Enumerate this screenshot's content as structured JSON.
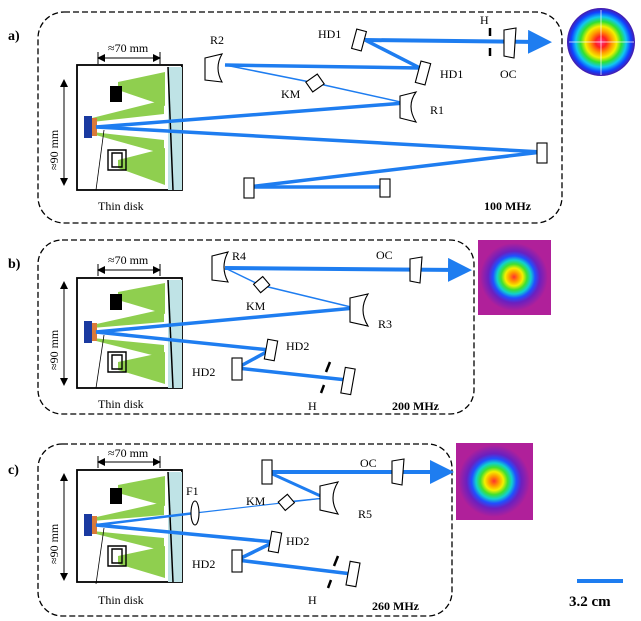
{
  "colors": {
    "beam": "#1e7df0",
    "pump": "#8fcf4f",
    "disk": "#1a3aa0",
    "disk_mount": "#d97a3a",
    "mirror_fill": "#bfe3e6"
  },
  "scale_bar": {
    "label": "3.2 cm"
  },
  "panels": [
    {
      "id": "a",
      "label": "a)",
      "rep_rate": "100 MHz",
      "head_width": "≈70 mm",
      "head_height": "≈90 mm",
      "disk_label": "Thin disk",
      "optics": {
        "R2": "R2",
        "HD1a": "HD1",
        "HD1b": "HD1",
        "H": "H",
        "OC": "OC",
        "KM": "KM",
        "R1": "R1"
      }
    },
    {
      "id": "b",
      "label": "b)",
      "rep_rate": "200 MHz",
      "head_width": "≈70 mm",
      "head_height": "≈90 mm",
      "disk_label": "Thin disk",
      "optics": {
        "R4": "R4",
        "OC": "OC",
        "KM": "KM",
        "R3": "R3",
        "HD2a": "HD2",
        "HD2b": "HD2",
        "H": "H"
      }
    },
    {
      "id": "c",
      "label": "c)",
      "rep_rate": "260 MHz",
      "head_width": "≈70 mm",
      "head_height": "≈90 mm",
      "disk_label": "Thin disk",
      "optics": {
        "OC": "OC",
        "F1": "F1",
        "KM": "KM",
        "R5": "R5",
        "HD2a": "HD2",
        "HD2b": "HD2",
        "H": "H"
      }
    }
  ]
}
